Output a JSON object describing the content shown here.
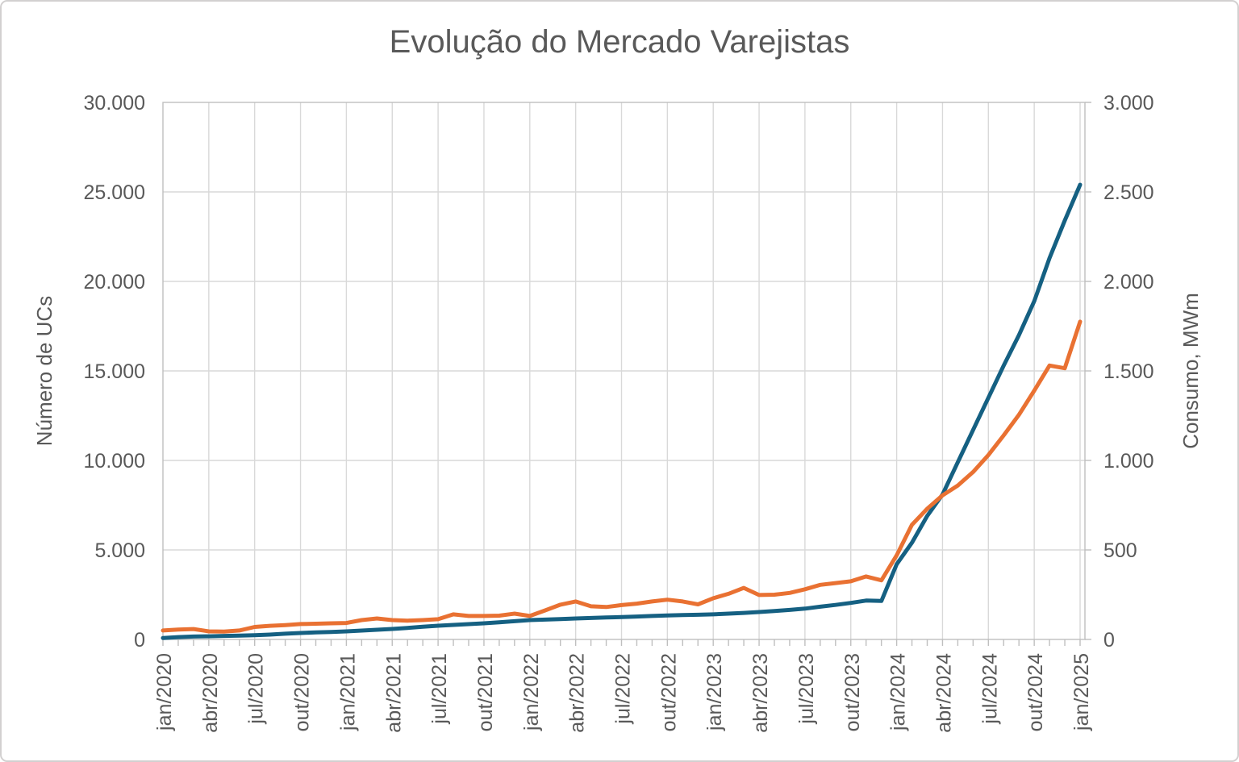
{
  "title": "Evolução do Mercado Varejistas",
  "colors": {
    "ucs_line": "#156082",
    "consumo_line": "#E97132",
    "gridline": "#D9D9D9",
    "axis_line": "#BFBFBF",
    "text": "#595959",
    "background": "#FFFFFF"
  },
  "chart_data": {
    "type": "line",
    "title": "Evolução do Mercado Varejistas",
    "grid": true,
    "legend": "none",
    "x_label_every": 3,
    "categories": [
      "jan/2020",
      "fev/2020",
      "mar/2020",
      "abr/2020",
      "mai/2020",
      "jun/2020",
      "jul/2020",
      "ago/2020",
      "set/2020",
      "out/2020",
      "nov/2020",
      "dez/2020",
      "jan/2021",
      "fev/2021",
      "mar/2021",
      "abr/2021",
      "mai/2021",
      "jun/2021",
      "jul/2021",
      "ago/2021",
      "set/2021",
      "out/2021",
      "nov/2021",
      "dez/2021",
      "jan/2022",
      "fev/2022",
      "mar/2022",
      "abr/2022",
      "mai/2022",
      "jun/2022",
      "jul/2022",
      "ago/2022",
      "set/2022",
      "out/2022",
      "nov/2022",
      "dez/2022",
      "jan/2023",
      "fev/2023",
      "mar/2023",
      "abr/2023",
      "mai/2023",
      "jun/2023",
      "jul/2023",
      "ago/2023",
      "set/2023",
      "out/2023",
      "nov/2023",
      "dez/2023",
      "jan/2024",
      "fev/2024",
      "mar/2024",
      "abr/2024",
      "mai/2024",
      "jun/2024",
      "jul/2024",
      "ago/2024",
      "set/2024",
      "out/2024",
      "nov/2024",
      "dez/2024",
      "jan/2025"
    ],
    "series": [
      {
        "name": "Número de UCs",
        "axis": "left",
        "color_key": "ucs_line",
        "values": [
          80,
          130,
          160,
          175,
          200,
          215,
          235,
          270,
          320,
          360,
          390,
          420,
          450,
          495,
          540,
          585,
          645,
          705,
          765,
          810,
          855,
          900,
          960,
          1020,
          1080,
          1110,
          1140,
          1170,
          1200,
          1225,
          1250,
          1280,
          1310,
          1340,
          1360,
          1380,
          1400,
          1440,
          1480,
          1530,
          1590,
          1650,
          1720,
          1830,
          1930,
          2040,
          2170,
          2150,
          4200,
          5400,
          6900,
          8100,
          9900,
          11700,
          13500,
          15300,
          17000,
          18900,
          21300,
          23400,
          25400
        ]
      },
      {
        "name": "Consumo, MWm",
        "axis": "right",
        "color_key": "consumo_line",
        "values": [
          50,
          55,
          58,
          45,
          44,
          50,
          70,
          76,
          80,
          86,
          88,
          90,
          92,
          108,
          117,
          108,
          105,
          108,
          113,
          140,
          131,
          131,
          133,
          144,
          131,
          162,
          194,
          212,
          185,
          181,
          192,
          200,
          212,
          222,
          212,
          196,
          230,
          255,
          288,
          248,
          250,
          260,
          280,
          305,
          315,
          325,
          352,
          330,
          470,
          640,
          730,
          805,
          860,
          935,
          1030,
          1140,
          1255,
          1390,
          1530,
          1515,
          1775
        ]
      }
    ],
    "left_axis": {
      "label": "Número de UCs",
      "min": 0,
      "max": 30000,
      "tick_step": 5000,
      "tick_labels": [
        "0",
        "5.000",
        "10.000",
        "15.000",
        "20.000",
        "25.000",
        "30.000"
      ]
    },
    "right_axis": {
      "label": "Consumo, MWm",
      "min": 0,
      "max": 3000,
      "tick_step": 500,
      "tick_labels": [
        "0",
        "500",
        "1.000",
        "1.500",
        "2.000",
        "2.500",
        "3.000"
      ]
    }
  }
}
